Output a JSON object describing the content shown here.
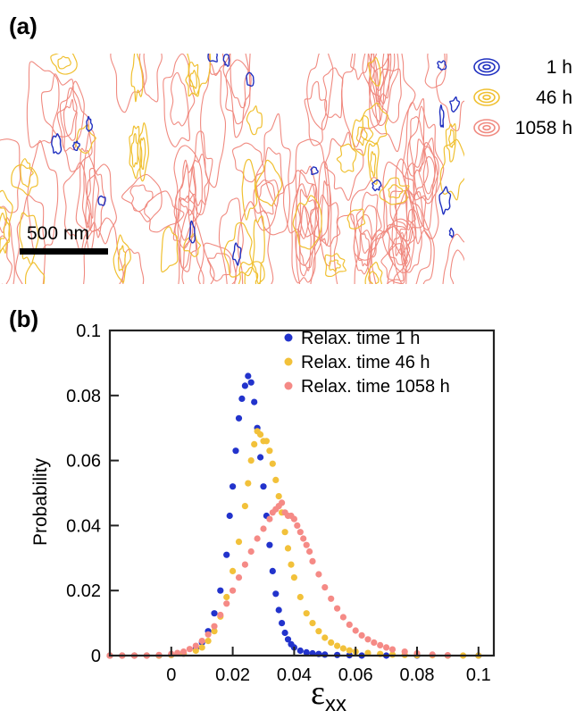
{
  "panel_a": {
    "label": "(a)",
    "scale_bar": "500 nm",
    "legend": [
      {
        "name": "1 h",
        "color": "#2030c0"
      },
      {
        "name": "46 h",
        "color": "#f0c030"
      },
      {
        "name": "1058 h",
        "color": "#f08a80"
      }
    ]
  },
  "panel_b": {
    "label": "(b)"
  },
  "chart_data": {
    "type": "scatter",
    "xlabel": "ε",
    "xlabel_sub": "xx",
    "ylabel": "Probability",
    "xlim": [
      -0.02,
      0.105
    ],
    "ylim": [
      0,
      0.1
    ],
    "xticks": [
      0,
      0.02,
      0.04,
      0.06,
      0.08,
      0.1
    ],
    "xtick_labels": [
      "0",
      "0.02",
      "0.04",
      "0.06",
      "0.08",
      "0.1"
    ],
    "yticks": [
      0,
      0.02,
      0.04,
      0.06,
      0.08,
      0.1
    ],
    "ytick_labels": [
      "0",
      "0.02",
      "0.04",
      "0.06",
      "0.08",
      "0.1"
    ],
    "legend_position": "top-right",
    "series": [
      {
        "name": "Relax. time 1 h",
        "color": "#2233cc",
        "x": [
          -0.02,
          -0.016,
          -0.012,
          -0.008,
          -0.004,
          0,
          0.004,
          0.008,
          0.01,
          0.012,
          0.014,
          0.016,
          0.018,
          0.019,
          0.02,
          0.021,
          0.022,
          0.023,
          0.024,
          0.025,
          0.026,
          0.027,
          0.028,
          0.029,
          0.03,
          0.031,
          0.032,
          0.033,
          0.034,
          0.035,
          0.036,
          0.037,
          0.038,
          0.039,
          0.04,
          0.042,
          0.044,
          0.046,
          0.048,
          0.05,
          0.054,
          0.058,
          0.062,
          0.07,
          0.08,
          0.09,
          0.1
        ],
        "y": [
          0,
          0,
          0,
          0,
          0,
          0.0002,
          0.0006,
          0.0022,
          0.004,
          0.0075,
          0.013,
          0.02,
          0.031,
          0.043,
          0.052,
          0.063,
          0.073,
          0.079,
          0.083,
          0.086,
          0.084,
          0.078,
          0.07,
          0.061,
          0.052,
          0.043,
          0.034,
          0.026,
          0.019,
          0.014,
          0.01,
          0.007,
          0.005,
          0.0035,
          0.0025,
          0.0015,
          0.001,
          0.0007,
          0.0005,
          0.0003,
          0.0002,
          0.0001,
          0,
          0,
          0,
          0,
          0
        ]
      },
      {
        "name": "Relax. time 46 h",
        "color": "#f2c13a",
        "x": [
          -0.02,
          -0.016,
          -0.012,
          -0.008,
          -0.004,
          0,
          0.004,
          0.008,
          0.01,
          0.012,
          0.014,
          0.016,
          0.018,
          0.02,
          0.022,
          0.024,
          0.025,
          0.026,
          0.027,
          0.028,
          0.029,
          0.03,
          0.031,
          0.032,
          0.033,
          0.034,
          0.035,
          0.036,
          0.037,
          0.038,
          0.039,
          0.04,
          0.042,
          0.044,
          0.046,
          0.048,
          0.05,
          0.052,
          0.054,
          0.056,
          0.058,
          0.06,
          0.064,
          0.068,
          0.072,
          0.076,
          0.08,
          0.085,
          0.09,
          0.095,
          0.1
        ],
        "y": [
          0,
          0,
          0,
          0,
          0,
          0.0002,
          0.0006,
          0.0015,
          0.0025,
          0.0045,
          0.0075,
          0.012,
          0.018,
          0.026,
          0.035,
          0.046,
          0.053,
          0.06,
          0.065,
          0.069,
          0.068,
          0.066,
          0.066,
          0.063,
          0.059,
          0.054,
          0.049,
          0.044,
          0.038,
          0.033,
          0.028,
          0.024,
          0.018,
          0.013,
          0.01,
          0.0075,
          0.0055,
          0.004,
          0.003,
          0.0022,
          0.0016,
          0.0012,
          0.0008,
          0.0005,
          0.0003,
          0.0002,
          0.0001,
          0.0001,
          0,
          0,
          0
        ]
      },
      {
        "name": "Relax. time 1058 h",
        "color": "#f58a86",
        "x": [
          -0.02,
          -0.016,
          -0.012,
          -0.008,
          -0.004,
          0,
          0.002,
          0.004,
          0.006,
          0.008,
          0.01,
          0.012,
          0.014,
          0.016,
          0.018,
          0.02,
          0.022,
          0.024,
          0.026,
          0.028,
          0.03,
          0.032,
          0.033,
          0.034,
          0.035,
          0.036,
          0.037,
          0.038,
          0.039,
          0.04,
          0.041,
          0.042,
          0.043,
          0.044,
          0.045,
          0.046,
          0.048,
          0.05,
          0.052,
          0.054,
          0.056,
          0.058,
          0.06,
          0.062,
          0.064,
          0.066,
          0.068,
          0.07,
          0.072,
          0.076,
          0.08,
          0.085,
          0.09
        ],
        "y": [
          0,
          0,
          0,
          0,
          0.0002,
          0.0005,
          0.0008,
          0.0012,
          0.002,
          0.003,
          0.0045,
          0.0065,
          0.009,
          0.0125,
          0.016,
          0.02,
          0.024,
          0.028,
          0.032,
          0.036,
          0.039,
          0.042,
          0.044,
          0.045,
          0.046,
          0.047,
          0.044,
          0.043,
          0.043,
          0.042,
          0.04,
          0.038,
          0.036,
          0.034,
          0.032,
          0.029,
          0.025,
          0.021,
          0.0175,
          0.0145,
          0.0118,
          0.0095,
          0.0077,
          0.0062,
          0.005,
          0.004,
          0.0032,
          0.0025,
          0.0019,
          0.0012,
          0.0007,
          0.0003,
          0.0001
        ]
      }
    ]
  }
}
